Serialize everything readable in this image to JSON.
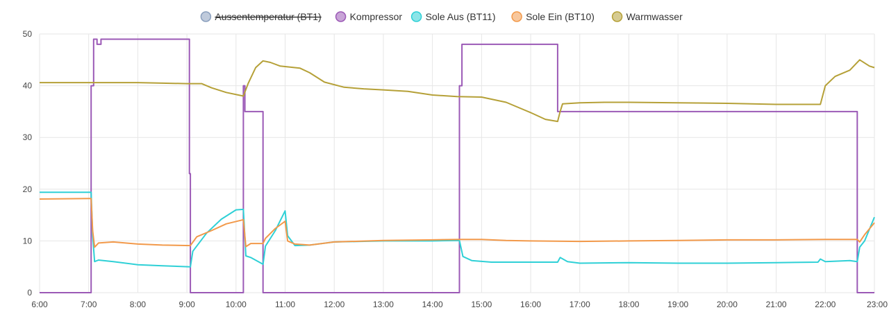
{
  "chart_data": {
    "type": "line",
    "grid": true,
    "legend_placement": "top-center",
    "x_ticks": [
      "6:00",
      "7:00",
      "8:00",
      "9:00",
      "10:00",
      "11:00",
      "12:00",
      "13:00",
      "14:00",
      "15:00",
      "16:00",
      "17:00",
      "18:00",
      "19:00",
      "20:00",
      "21:00",
      "22:00",
      "23:00"
    ],
    "xlim": [
      6,
      23
    ],
    "y_ticks": [
      0,
      10,
      20,
      30,
      40,
      50
    ],
    "ylim": [
      0,
      50
    ],
    "series": [
      {
        "name": "Aussentemperatur (BT1)",
        "color": "#8a9fbd",
        "hidden": true,
        "points": []
      },
      {
        "name": "Kompressor",
        "color": "#9b59b6",
        "hidden": false,
        "step": true,
        "points": [
          [
            6,
            0
          ],
          [
            7.05,
            0
          ],
          [
            7.05,
            40
          ],
          [
            7.1,
            40
          ],
          [
            7.1,
            49
          ],
          [
            7.17,
            49
          ],
          [
            7.17,
            48
          ],
          [
            7.25,
            48
          ],
          [
            7.25,
            49
          ],
          [
            9.05,
            49
          ],
          [
            9.05,
            23
          ],
          [
            9.07,
            23
          ],
          [
            9.07,
            0
          ],
          [
            10.15,
            0
          ],
          [
            10.15,
            40
          ],
          [
            10.18,
            40
          ],
          [
            10.18,
            35
          ],
          [
            10.55,
            35
          ],
          [
            10.55,
            0
          ],
          [
            14.55,
            0
          ],
          [
            14.55,
            40
          ],
          [
            14.6,
            40
          ],
          [
            14.6,
            48
          ],
          [
            16.55,
            48
          ],
          [
            16.55,
            35
          ],
          [
            22.65,
            35
          ],
          [
            22.65,
            0
          ],
          [
            23,
            0
          ]
        ]
      },
      {
        "name": "Sole Aus (BT11)",
        "color": "#2ed0d6",
        "hidden": false,
        "points": [
          [
            6,
            19.4
          ],
          [
            7.05,
            19.4
          ],
          [
            7.08,
            11
          ],
          [
            7.12,
            6
          ],
          [
            7.2,
            6.3
          ],
          [
            7.5,
            6
          ],
          [
            8,
            5.4
          ],
          [
            8.5,
            5.2
          ],
          [
            9.07,
            5
          ],
          [
            9.12,
            8
          ],
          [
            9.4,
            11.5
          ],
          [
            9.7,
            14.2
          ],
          [
            10,
            16
          ],
          [
            10.15,
            16.1
          ],
          [
            10.2,
            7.1
          ],
          [
            10.3,
            6.8
          ],
          [
            10.55,
            5.5
          ],
          [
            10.6,
            9
          ],
          [
            10.8,
            12
          ],
          [
            11.0,
            15.8
          ],
          [
            11.05,
            11
          ],
          [
            11.2,
            9.1
          ],
          [
            11.5,
            9.2
          ],
          [
            12,
            9.8
          ],
          [
            13,
            10
          ],
          [
            14,
            10
          ],
          [
            14.55,
            10.1
          ],
          [
            14.62,
            7
          ],
          [
            14.8,
            6.2
          ],
          [
            15.2,
            5.9
          ],
          [
            16,
            5.9
          ],
          [
            16.55,
            5.9
          ],
          [
            16.6,
            6.8
          ],
          [
            16.75,
            6
          ],
          [
            17,
            5.7
          ],
          [
            18,
            5.8
          ],
          [
            19,
            5.7
          ],
          [
            20,
            5.7
          ],
          [
            21,
            5.8
          ],
          [
            21.85,
            5.9
          ],
          [
            21.9,
            6.5
          ],
          [
            22,
            6
          ],
          [
            22.5,
            6.2
          ],
          [
            22.65,
            6
          ],
          [
            22.7,
            8.8
          ],
          [
            22.8,
            10
          ],
          [
            23,
            14.6
          ]
        ]
      },
      {
        "name": "Sole Ein (BT10)",
        "color": "#f2994a",
        "hidden": false,
        "points": [
          [
            6,
            18.1
          ],
          [
            7.05,
            18.2
          ],
          [
            7.08,
            12
          ],
          [
            7.12,
            8.8
          ],
          [
            7.2,
            9.6
          ],
          [
            7.5,
            9.8
          ],
          [
            8,
            9.4
          ],
          [
            8.5,
            9.2
          ],
          [
            9.07,
            9.1
          ],
          [
            9.2,
            10.8
          ],
          [
            9.5,
            12
          ],
          [
            9.8,
            13.3
          ],
          [
            10.15,
            14.1
          ],
          [
            10.2,
            8.9
          ],
          [
            10.3,
            9.5
          ],
          [
            10.55,
            9.5
          ],
          [
            10.6,
            10.5
          ],
          [
            10.8,
            12.4
          ],
          [
            11.0,
            13.8
          ],
          [
            11.05,
            10
          ],
          [
            11.2,
            9.4
          ],
          [
            11.5,
            9.2
          ],
          [
            12,
            9.8
          ],
          [
            13,
            10.1
          ],
          [
            14,
            10.2
          ],
          [
            14.55,
            10.3
          ],
          [
            15,
            10.3
          ],
          [
            15.5,
            10.1
          ],
          [
            16,
            10
          ],
          [
            17,
            9.9
          ],
          [
            18,
            10
          ],
          [
            19,
            10.1
          ],
          [
            20,
            10.2
          ],
          [
            21,
            10.2
          ],
          [
            22,
            10.3
          ],
          [
            22.65,
            10.3
          ],
          [
            22.7,
            9.8
          ],
          [
            22.8,
            11.2
          ],
          [
            23,
            13.5
          ]
        ]
      },
      {
        "name": "Warmwasser",
        "color": "#b5a037",
        "hidden": false,
        "points": [
          [
            6,
            40.6
          ],
          [
            7,
            40.6
          ],
          [
            8,
            40.6
          ],
          [
            8.5,
            40.5
          ],
          [
            9,
            40.4
          ],
          [
            9.3,
            40.4
          ],
          [
            9.5,
            39.6
          ],
          [
            9.8,
            38.7
          ],
          [
            10.15,
            38
          ],
          [
            10.25,
            40.5
          ],
          [
            10.4,
            43.5
          ],
          [
            10.55,
            44.8
          ],
          [
            10.7,
            44.5
          ],
          [
            10.9,
            43.8
          ],
          [
            11.3,
            43.4
          ],
          [
            11.5,
            42.5
          ],
          [
            11.8,
            40.7
          ],
          [
            12.2,
            39.7
          ],
          [
            12.6,
            39.4
          ],
          [
            13,
            39.2
          ],
          [
            13.5,
            38.9
          ],
          [
            14,
            38.2
          ],
          [
            14.5,
            37.9
          ],
          [
            15,
            37.8
          ],
          [
            15.5,
            36.8
          ],
          [
            16,
            34.8
          ],
          [
            16.3,
            33.5
          ],
          [
            16.55,
            33.1
          ],
          [
            16.6,
            35
          ],
          [
            16.65,
            36.5
          ],
          [
            17,
            36.7
          ],
          [
            17.5,
            36.8
          ],
          [
            18,
            36.8
          ],
          [
            19,
            36.7
          ],
          [
            20,
            36.6
          ],
          [
            21,
            36.4
          ],
          [
            21.9,
            36.4
          ],
          [
            22.0,
            40
          ],
          [
            22.2,
            41.8
          ],
          [
            22.5,
            43
          ],
          [
            22.7,
            45
          ],
          [
            22.9,
            43.8
          ],
          [
            23,
            43.5
          ]
        ]
      }
    ]
  }
}
